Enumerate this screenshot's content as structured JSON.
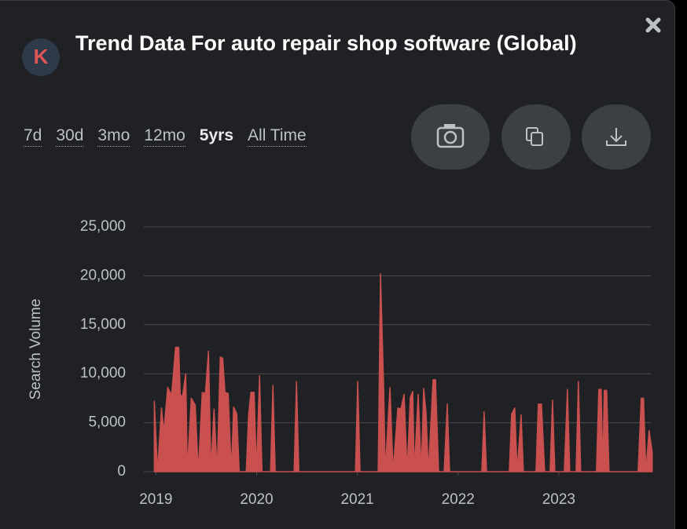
{
  "header": {
    "logo": "K",
    "title": "Trend Data For auto repair shop software (Global)"
  },
  "time_ranges": [
    "7d",
    "30d",
    "3mo",
    "12mo",
    "5yrs",
    "All Time"
  ],
  "selected_range": 4,
  "chart_data": {
    "type": "area",
    "y_label": "Search Volume",
    "x": [
      2018.984,
      2019.016,
      2019.055,
      2019.078,
      2019.117,
      2019.156,
      2019.195,
      2019.226,
      2019.242,
      2019.265,
      2019.296,
      2019.312,
      2019.351,
      2019.39,
      2019.421,
      2019.46,
      2019.491,
      2019.522,
      2019.546,
      2019.577,
      2019.608,
      2019.639,
      2019.663,
      2019.686,
      2019.717,
      2019.749,
      2019.772,
      2019.803,
      2019.827,
      2019.897,
      2019.92,
      2019.943,
      2019.975,
      2019.998,
      2020.029,
      2020.053,
      2020.138,
      2020.162,
      2020.185,
      2020.372,
      2020.396,
      2020.419,
      2020.981,
      2021.004,
      2021.027,
      2021.207,
      2021.23,
      2021.261,
      2021.277,
      2021.324,
      2021.355,
      2021.402,
      2021.433,
      2021.464,
      2021.495,
      2021.526,
      2021.55,
      2021.565,
      2021.604,
      2021.635,
      2021.659,
      2021.682,
      2021.706,
      2021.752,
      2021.776,
      2021.807,
      2021.862,
      2021.893,
      2021.916,
      2022.236,
      2022.259,
      2022.283,
      2022.509,
      2022.532,
      2022.563,
      2022.587,
      2022.626,
      2022.649,
      2022.774,
      2022.797,
      2022.828,
      2022.86,
      2022.914,
      2022.938,
      2022.961,
      2023.055,
      2023.086,
      2023.109,
      2023.172,
      2023.195,
      2023.218,
      2023.374,
      2023.398,
      2023.421,
      2023.437,
      2023.452,
      2023.476,
      2023.499,
      2023.788,
      2023.819,
      2023.842,
      2023.865,
      2023.897,
      2023.928
    ],
    "series": [
      {
        "color": "#c9504f",
        "values": [
          7200,
          0,
          6500,
          4000,
          8600,
          7800,
          12700,
          12700,
          7700,
          7800,
          10000,
          0,
          7500,
          6800,
          0,
          8100,
          8000,
          12300,
          0,
          6400,
          0,
          11700,
          11600,
          8100,
          8000,
          0,
          6600,
          5900,
          0,
          0,
          5800,
          8100,
          8100,
          0,
          9800,
          0,
          0,
          8800,
          0,
          0,
          9200,
          0,
          0,
          9200,
          0,
          0,
          20200,
          8700,
          0,
          8600,
          0,
          6500,
          6400,
          7900,
          0,
          7600,
          8200,
          0,
          7900,
          0,
          8500,
          6000,
          0,
          9400,
          9400,
          0,
          0,
          6900,
          0,
          0,
          6100,
          0,
          0,
          5900,
          6500,
          0,
          5800,
          0,
          0,
          6900,
          6900,
          0,
          0,
          7300,
          0,
          0,
          8400,
          0,
          0,
          9200,
          0,
          0,
          8400,
          8400,
          0,
          8300,
          8300,
          0,
          0,
          7500,
          7500,
          0,
          4200,
          2000
        ]
      }
    ],
    "xlim": [
      2018.88,
      2023.93
    ],
    "xticks": [
      2019,
      2020,
      2021,
      2022,
      2023
    ],
    "ylim": [
      0,
      25000
    ],
    "yticks": [
      0,
      {
        "value": 5000,
        "label": "5,000"
      },
      {
        "value": 10000,
        "label": "10,000"
      },
      {
        "value": 15000,
        "label": "15,000"
      },
      {
        "value": 20000,
        "label": "20,000"
      },
      {
        "value": 25000,
        "label": "25,000"
      }
    ],
    "grid": true
  }
}
